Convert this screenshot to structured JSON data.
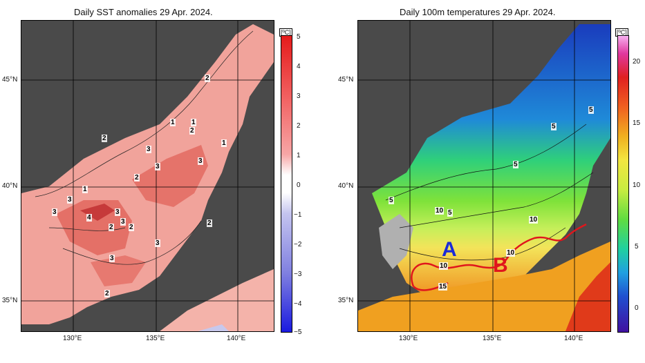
{
  "left": {
    "title": "Daily SST anomalies 29 Apr. 2024.",
    "unit": "[ºC]",
    "colorbar_ticks": [
      "5",
      "4",
      "3",
      "2",
      "1",
      "0",
      "−1",
      "−2",
      "−3",
      "−4",
      "−5"
    ],
    "lat_labels": [
      "45°N",
      "40°N",
      "35°N"
    ],
    "lon_labels": [
      "130°E",
      "135°E",
      "140°E"
    ],
    "contour_labels": [
      "2",
      "1",
      "1",
      "2",
      "1",
      "2",
      "3",
      "3",
      "3",
      "2",
      "1",
      "3",
      "3",
      "3",
      "4",
      "3",
      "2",
      "2",
      "2",
      "3",
      "3",
      "2"
    ],
    "colors": {
      "land": "#4a4a4a",
      "sea_warm": "#f1a39b",
      "sea_hot": "#e2675e",
      "sea_cold": "#c7c8ec"
    }
  },
  "right": {
    "title": "Daily 100m temperatures 29 Apr. 2024.",
    "unit": "[ºC]",
    "colorbar_ticks": [
      "20",
      "15",
      "10",
      "5",
      "0"
    ],
    "lat_labels": [
      "45°N",
      "40°N",
      "35°N"
    ],
    "lon_labels": [
      "130°E",
      "135°E",
      "140°E"
    ],
    "contour_labels": [
      "5",
      "5",
      "5",
      "5",
      "10",
      "5",
      "10",
      "10",
      "10",
      "15"
    ],
    "markers": {
      "a": "A",
      "b": "B"
    },
    "colors": {
      "land": "#4a4a4a",
      "front_line": "#e0161c",
      "marker_a": "#1a2bd8",
      "marker_b": "#e0161c"
    }
  }
}
